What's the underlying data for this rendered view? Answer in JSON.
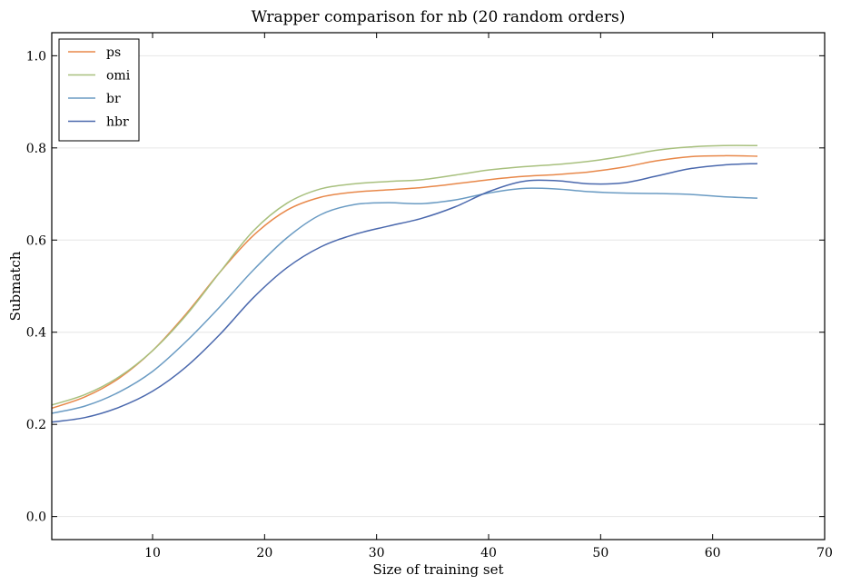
{
  "chart_data": {
    "type": "line",
    "title": "Wrapper comparison for nb (20 random orders)",
    "xlabel": "Size of training set",
    "ylabel": "Submatch",
    "xlim": [
      1,
      70
    ],
    "ylim": [
      -0.05,
      1.05
    ],
    "xticks": [
      10,
      20,
      30,
      40,
      50,
      60,
      70
    ],
    "yticks": [
      0.0,
      0.2,
      0.4,
      0.6,
      0.8,
      1.0
    ],
    "xtick_labels": [
      "10",
      "20",
      "30",
      "40",
      "50",
      "60",
      "70"
    ],
    "ytick_labels": [
      "0.0",
      "0.2",
      "0.4",
      "0.6",
      "0.8",
      "1.0"
    ],
    "grid": "horizontal",
    "legend_position": "top-left",
    "series": [
      {
        "name": "ps",
        "color": "#e8884a",
        "x": [
          1,
          4,
          7,
          10,
          13,
          16,
          19,
          22,
          25,
          28,
          31,
          34,
          37,
          40,
          43,
          46,
          49,
          52,
          55,
          58,
          61,
          64
        ],
        "y": [
          0.235,
          0.26,
          0.3,
          0.36,
          0.44,
          0.53,
          0.61,
          0.665,
          0.693,
          0.704,
          0.709,
          0.714,
          0.722,
          0.731,
          0.738,
          0.742,
          0.748,
          0.758,
          0.772,
          0.781,
          0.783,
          0.782
        ]
      },
      {
        "name": "omi",
        "color": "#a8c07e",
        "x": [
          1,
          4,
          7,
          10,
          13,
          16,
          19,
          22,
          25,
          28,
          31,
          34,
          37,
          40,
          43,
          46,
          49,
          52,
          55,
          58,
          61,
          64
        ],
        "y": [
          0.242,
          0.265,
          0.303,
          0.36,
          0.437,
          0.53,
          0.62,
          0.68,
          0.711,
          0.722,
          0.727,
          0.731,
          0.741,
          0.752,
          0.759,
          0.764,
          0.771,
          0.782,
          0.795,
          0.802,
          0.805,
          0.805
        ]
      },
      {
        "name": "br",
        "color": "#6a9bc3",
        "x": [
          1,
          4,
          7,
          10,
          13,
          16,
          19,
          22,
          25,
          28,
          31,
          34,
          37,
          40,
          43,
          46,
          49,
          52,
          55,
          58,
          61,
          64
        ],
        "y": [
          0.224,
          0.24,
          0.27,
          0.315,
          0.38,
          0.455,
          0.535,
          0.605,
          0.655,
          0.677,
          0.681,
          0.679,
          0.687,
          0.702,
          0.712,
          0.711,
          0.705,
          0.702,
          0.701,
          0.699,
          0.694,
          0.691
        ]
      },
      {
        "name": "hbr",
        "color": "#4a68ad",
        "x": [
          1,
          4,
          7,
          10,
          13,
          16,
          19,
          22,
          25,
          28,
          31,
          34,
          37,
          40,
          43,
          46,
          49,
          52,
          55,
          58,
          61,
          64
        ],
        "y": [
          0.205,
          0.215,
          0.237,
          0.272,
          0.325,
          0.395,
          0.475,
          0.54,
          0.585,
          0.612,
          0.63,
          0.647,
          0.672,
          0.705,
          0.727,
          0.729,
          0.722,
          0.724,
          0.739,
          0.755,
          0.763,
          0.766
        ]
      }
    ]
  }
}
